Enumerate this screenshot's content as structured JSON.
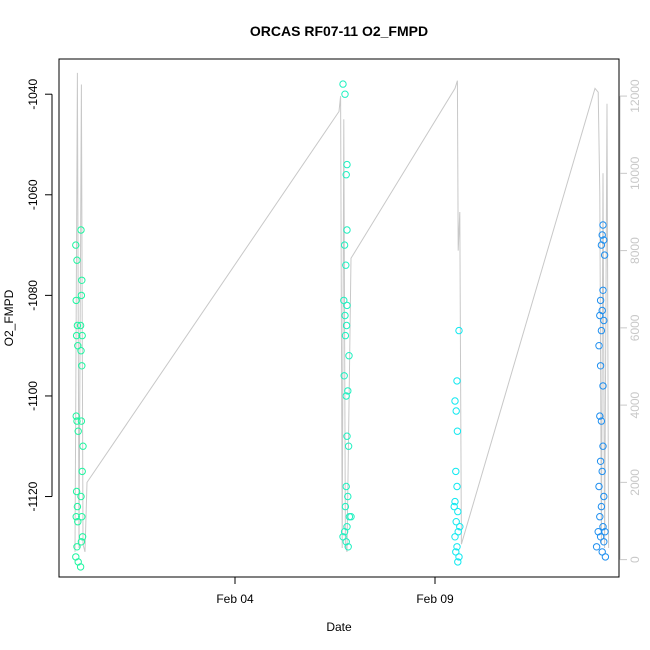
{
  "chart_data": {
    "type": "scatter",
    "title": "ORCAS RF07-11 O2_FMPD",
    "xlabel": "Date",
    "ylabel": "O2_FMPD",
    "x_ticks": [
      {
        "label": "Feb 04",
        "day": 4.0
      },
      {
        "label": "Feb 09",
        "day": 9.0
      }
    ],
    "xlim_days": [
      -0.4,
      13.6
    ],
    "ylim": [
      -1136,
      -1033
    ],
    "y_ticks": [
      -1120,
      -1100,
      -1080,
      -1060,
      -1040
    ],
    "y2_ticks": [
      0,
      2000,
      4000,
      6000,
      8000,
      10000,
      12000
    ],
    "y2lim": [
      -450,
      12960
    ],
    "altitude_line_color": "#c8c8c8",
    "altitude_profile": [
      [
        0.0,
        200
      ],
      [
        0.06,
        12600
      ],
      [
        0.1,
        300
      ],
      [
        0.16,
        12300
      ],
      [
        0.2,
        400
      ],
      [
        0.25,
        200
      ],
      [
        0.3,
        2000
      ],
      [
        6.6,
        11600
      ],
      [
        6.64,
        12000
      ],
      [
        6.68,
        300
      ],
      [
        6.72,
        11400
      ],
      [
        6.76,
        400
      ],
      [
        6.8,
        200
      ],
      [
        6.9,
        7800
      ],
      [
        9.5,
        12200
      ],
      [
        9.56,
        12400
      ],
      [
        9.58,
        8000
      ],
      [
        9.62,
        9000
      ],
      [
        9.66,
        400
      ],
      [
        13.0,
        12200
      ],
      [
        13.08,
        12100
      ],
      [
        13.12,
        9500
      ],
      [
        13.16,
        400
      ],
      [
        13.2,
        10000
      ],
      [
        13.24,
        300
      ],
      [
        13.3,
        11800
      ],
      [
        13.34,
        300
      ]
    ],
    "series": [
      {
        "color": "#1ef5a0",
        "points": [
          [
            0.02,
            -1070
          ],
          [
            0.05,
            -1073
          ],
          [
            0.03,
            -1081
          ],
          [
            0.06,
            -1086
          ],
          [
            0.04,
            -1088
          ],
          [
            0.07,
            -1090
          ],
          [
            0.03,
            -1104
          ],
          [
            0.05,
            -1105
          ],
          [
            0.08,
            -1107
          ],
          [
            0.04,
            -1119
          ],
          [
            0.06,
            -1122
          ],
          [
            0.03,
            -1124
          ],
          [
            0.07,
            -1125
          ],
          [
            0.05,
            -1130
          ],
          [
            0.02,
            -1132
          ],
          [
            0.08,
            -1133
          ],
          [
            0.15,
            -1067
          ],
          [
            0.17,
            -1077
          ],
          [
            0.16,
            -1080
          ],
          [
            0.14,
            -1086
          ],
          [
            0.18,
            -1088
          ],
          [
            0.15,
            -1091
          ],
          [
            0.17,
            -1094
          ],
          [
            0.16,
            -1105
          ],
          [
            0.2,
            -1110
          ],
          [
            0.18,
            -1115
          ],
          [
            0.15,
            -1120
          ],
          [
            0.17,
            -1124
          ],
          [
            0.19,
            -1128
          ],
          [
            0.16,
            -1129
          ],
          [
            0.14,
            -1134
          ]
        ]
      },
      {
        "color": "#1ef0c0",
        "points": [
          [
            6.7,
            -1038
          ],
          [
            6.75,
            -1040
          ],
          [
            6.8,
            -1054
          ],
          [
            6.78,
            -1056
          ],
          [
            6.8,
            -1067
          ],
          [
            6.74,
            -1070
          ],
          [
            6.77,
            -1074
          ],
          [
            6.72,
            -1081
          ],
          [
            6.8,
            -1082
          ],
          [
            6.75,
            -1084
          ],
          [
            6.79,
            -1086
          ],
          [
            6.76,
            -1088
          ],
          [
            6.85,
            -1092
          ],
          [
            6.73,
            -1096
          ],
          [
            6.82,
            -1099
          ],
          [
            6.78,
            -1100
          ],
          [
            6.8,
            -1108
          ],
          [
            6.84,
            -1110
          ],
          [
            6.78,
            -1118
          ],
          [
            6.82,
            -1120
          ],
          [
            6.76,
            -1122
          ],
          [
            6.86,
            -1124
          ],
          [
            6.8,
            -1126
          ],
          [
            6.74,
            -1127
          ],
          [
            6.7,
            -1128
          ],
          [
            6.78,
            -1129
          ],
          [
            6.83,
            -1130
          ],
          [
            6.9,
            -1124
          ]
        ]
      },
      {
        "color": "#10e8f0",
        "points": [
          [
            9.6,
            -1087
          ],
          [
            9.55,
            -1097
          ],
          [
            9.5,
            -1101
          ],
          [
            9.53,
            -1103
          ],
          [
            9.56,
            -1107
          ],
          [
            9.52,
            -1115
          ],
          [
            9.55,
            -1118
          ],
          [
            9.5,
            -1121
          ],
          [
            9.57,
            -1123
          ],
          [
            9.53,
            -1125
          ],
          [
            9.58,
            -1127
          ],
          [
            9.5,
            -1128
          ],
          [
            9.55,
            -1130
          ],
          [
            9.6,
            -1132
          ],
          [
            9.57,
            -1133
          ],
          [
            9.52,
            -1131
          ],
          [
            9.62,
            -1126
          ],
          [
            9.48,
            -1122
          ]
        ]
      },
      {
        "color": "#1e8ff0",
        "points": [
          [
            13.2,
            -1066
          ],
          [
            13.18,
            -1068
          ],
          [
            13.22,
            -1069
          ],
          [
            13.16,
            -1070
          ],
          [
            13.24,
            -1072
          ],
          [
            13.2,
            -1079
          ],
          [
            13.14,
            -1081
          ],
          [
            13.18,
            -1083
          ],
          [
            13.12,
            -1084
          ],
          [
            13.22,
            -1085
          ],
          [
            13.16,
            -1087
          ],
          [
            13.1,
            -1090
          ],
          [
            13.14,
            -1094
          ],
          [
            13.2,
            -1098
          ],
          [
            13.12,
            -1104
          ],
          [
            13.16,
            -1105
          ],
          [
            13.2,
            -1110
          ],
          [
            13.14,
            -1113
          ],
          [
            13.18,
            -1115
          ],
          [
            13.1,
            -1118
          ],
          [
            13.22,
            -1120
          ],
          [
            13.16,
            -1122
          ],
          [
            13.12,
            -1124
          ],
          [
            13.2,
            -1126
          ],
          [
            13.08,
            -1127
          ],
          [
            13.25,
            -1127
          ],
          [
            13.14,
            -1128
          ],
          [
            13.22,
            -1129
          ],
          [
            13.04,
            -1130
          ],
          [
            13.18,
            -1131
          ],
          [
            13.26,
            -1132
          ]
        ]
      }
    ]
  }
}
